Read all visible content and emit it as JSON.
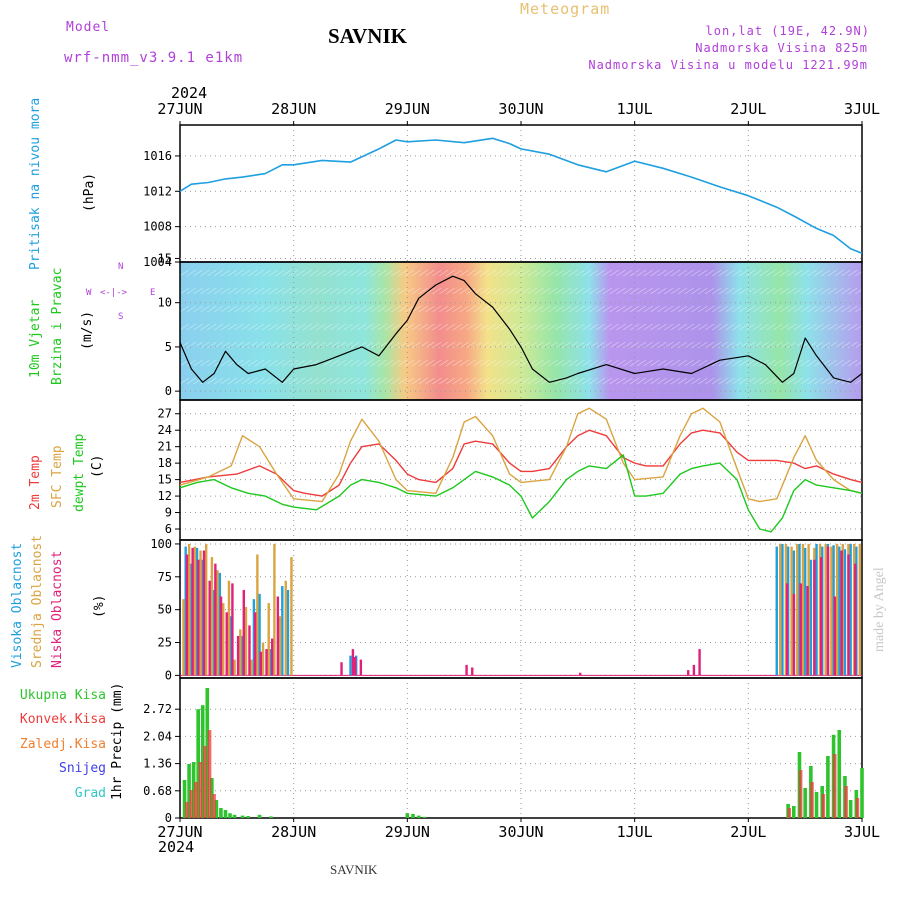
{
  "header": {
    "model_label": "Model",
    "model_name": "wrf-nmm_v3.9.1 e1km",
    "station": "SAVNIK",
    "product": "Meteogram",
    "lonlat": "lon,lat (19E, 42.9N)",
    "elevation": "Nadmorska Visina 825m",
    "model_elevation": "Nadmorska Visina u modelu 1221.99m",
    "year": "2024"
  },
  "footer": {
    "station": "SAVNIK",
    "year": "2024",
    "watermark": "made by Angel"
  },
  "colors": {
    "pressure": "#1e9fe0",
    "temp2m": "#ee3b3b",
    "sfc": "#d9a441",
    "dewpt": "#1ec81e",
    "high_cloud": "#1e9fe0",
    "mid_cloud": "#d9a441",
    "low_cloud": "#e0207a",
    "total_precip": "#2ec42e",
    "conv_precip": "#ee3b3b",
    "frz_precip": "#ee8030",
    "snow": "#4040e8",
    "graupel": "#30c8c8"
  },
  "axis_labels": {
    "pressure": [
      "Pritisak na nivou mora",
      "(hPa)"
    ],
    "wind": [
      "10m Vjetar",
      "Brzina i Pravac",
      "(m/s)"
    ],
    "wind_compass": [
      "N",
      "S",
      "W",
      "E",
      "<-|->"
    ],
    "temp": [
      "2m Temp",
      "SFC Temp",
      "dewpt Temp",
      "(C)"
    ],
    "cloud": [
      "Visoka Oblacnost",
      "Srednja Oblacnost",
      "Niska Oblacnost",
      "(%)"
    ],
    "precip": [
      "Ukupna Kisa",
      "Konvek.Kisa",
      "Zaledj.Kisa",
      "Snijeg",
      "Grad",
      "1hr Precip (mm)"
    ]
  },
  "chart_data": [
    {
      "type": "line",
      "x_ticks": [
        "27JUN",
        "28JUN",
        "29JUN",
        "30JUN",
        "1JUL",
        "2JUL",
        "3JUL"
      ],
      "ylabel": "(hPa)",
      "ylim": [
        1004,
        1019.5
      ],
      "yticks": [
        1004,
        1008,
        1012,
        1016
      ],
      "grid": true,
      "series": [
        {
          "name": "Pritisak na nivou mora",
          "x": [
            0,
            0.1,
            0.25,
            0.4,
            0.55,
            0.75,
            0.9,
            1.0,
            1.25,
            1.5,
            1.75,
            1.9,
            2.0,
            2.25,
            2.5,
            2.75,
            2.9,
            3.0,
            3.25,
            3.5,
            3.75,
            4.0,
            4.25,
            4.5,
            4.75,
            5.0,
            5.25,
            5.4,
            5.6,
            5.75,
            5.9,
            6.0
          ],
          "y": [
            1012.0,
            1012.8,
            1013.0,
            1013.4,
            1013.6,
            1014.0,
            1015.0,
            1015.0,
            1015.5,
            1015.3,
            1016.8,
            1017.8,
            1017.6,
            1017.8,
            1017.5,
            1018.0,
            1017.4,
            1016.8,
            1016.2,
            1015.0,
            1014.2,
            1015.4,
            1014.6,
            1013.6,
            1012.5,
            1011.5,
            1010.2,
            1009.2,
            1007.8,
            1007.0,
            1005.5,
            1005.0
          ]
        }
      ]
    },
    {
      "type": "line",
      "ylabel": "(m/s)",
      "ylim": [
        -1,
        14.6
      ],
      "yticks": [
        0,
        5,
        10,
        15
      ],
      "grid": true,
      "series": [
        {
          "name": "10m Vjetar",
          "x": [
            0,
            0.1,
            0.2,
            0.3,
            0.4,
            0.5,
            0.6,
            0.75,
            0.9,
            1.0,
            1.2,
            1.4,
            1.5,
            1.6,
            1.75,
            1.9,
            2.0,
            2.1,
            2.25,
            2.4,
            2.5,
            2.6,
            2.75,
            2.9,
            3.0,
            3.1,
            3.25,
            3.4,
            3.5,
            3.75,
            4.0,
            4.25,
            4.5,
            4.75,
            5.0,
            5.15,
            5.3,
            5.4,
            5.5,
            5.6,
            5.75,
            5.9,
            6.0
          ],
          "y": [
            5.5,
            2.5,
            1.0,
            2.0,
            4.5,
            3.0,
            2.0,
            2.5,
            1.0,
            2.5,
            3.0,
            4.0,
            4.5,
            5.0,
            4.0,
            6.5,
            8.0,
            10.5,
            12.0,
            13.0,
            12.5,
            11.0,
            9.5,
            7.0,
            5.0,
            2.5,
            1.0,
            1.5,
            2.0,
            3.0,
            2.0,
            2.5,
            2.0,
            3.5,
            4.0,
            3.0,
            1.0,
            2.0,
            6.0,
            4.0,
            1.5,
            1.0,
            2.0
          ]
        }
      ]
    },
    {
      "type": "line",
      "ylabel": "(C)",
      "ylim": [
        4,
        29.5
      ],
      "yticks": [
        6,
        9,
        12,
        15,
        18,
        21,
        24,
        27
      ],
      "grid": true,
      "series": [
        {
          "name": "2m Temp",
          "x": [
            0,
            0.25,
            0.5,
            0.7,
            0.85,
            1.0,
            1.1,
            1.25,
            1.4,
            1.5,
            1.6,
            1.75,
            1.9,
            2.0,
            2.1,
            2.25,
            2.4,
            2.5,
            2.6,
            2.75,
            2.9,
            3.0,
            3.1,
            3.25,
            3.4,
            3.5,
            3.6,
            3.75,
            3.9,
            4.0,
            4.1,
            4.25,
            4.4,
            4.5,
            4.6,
            4.75,
            4.9,
            5.0,
            5.1,
            5.25,
            5.4,
            5.5,
            5.6,
            5.75,
            5.9,
            6.0
          ],
          "y": [
            14.5,
            15.5,
            16.0,
            17.5,
            16.0,
            13.0,
            12.5,
            12.0,
            14.0,
            18.0,
            21.0,
            21.5,
            18.5,
            16.0,
            15.0,
            14.5,
            17.0,
            21.5,
            22.0,
            21.5,
            18.0,
            16.5,
            16.5,
            17.0,
            21.0,
            23.0,
            24.0,
            23.0,
            19.0,
            18.0,
            17.5,
            17.5,
            21.5,
            23.5,
            24.0,
            23.5,
            20.0,
            18.5,
            18.5,
            18.5,
            18.0,
            17.0,
            17.5,
            16.0,
            15.0,
            14.5
          ]
        },
        {
          "name": "SFC Temp",
          "x": [
            0,
            0.25,
            0.45,
            0.55,
            0.7,
            0.85,
            1.0,
            1.25,
            1.4,
            1.5,
            1.6,
            1.75,
            1.9,
            2.0,
            2.25,
            2.4,
            2.5,
            2.6,
            2.75,
            2.9,
            3.0,
            3.25,
            3.4,
            3.5,
            3.6,
            3.75,
            3.9,
            4.0,
            4.25,
            4.4,
            4.5,
            4.6,
            4.75,
            4.9,
            5.0,
            5.1,
            5.25,
            5.4,
            5.5,
            5.6,
            5.75,
            5.9,
            6.0
          ],
          "y": [
            14.0,
            15.5,
            17.5,
            23.0,
            21.0,
            16.0,
            11.5,
            11.0,
            16.0,
            22.0,
            26.0,
            22.0,
            15.0,
            13.0,
            12.5,
            19.0,
            25.5,
            26.5,
            23.0,
            16.0,
            14.5,
            15.0,
            21.0,
            27.0,
            28.0,
            26.0,
            18.0,
            15.0,
            15.5,
            23.0,
            27.0,
            28.0,
            25.5,
            17.0,
            11.5,
            11.0,
            11.5,
            19.0,
            23.0,
            18.5,
            15.0,
            13.0,
            12.5
          ]
        },
        {
          "name": "dewpt Temp",
          "x": [
            0,
            0.15,
            0.3,
            0.45,
            0.6,
            0.75,
            0.9,
            1.0,
            1.2,
            1.4,
            1.5,
            1.6,
            1.75,
            1.9,
            2.0,
            2.25,
            2.4,
            2.5,
            2.6,
            2.75,
            2.9,
            3.0,
            3.1,
            3.25,
            3.4,
            3.5,
            3.6,
            3.75,
            3.9,
            4.0,
            4.1,
            4.25,
            4.4,
            4.5,
            4.6,
            4.75,
            4.9,
            5.0,
            5.1,
            5.2,
            5.3,
            5.4,
            5.5,
            5.6,
            5.75,
            5.9,
            6.0
          ],
          "y": [
            13.5,
            14.5,
            15.0,
            13.5,
            12.5,
            12.0,
            10.5,
            10.0,
            9.5,
            12.0,
            14.0,
            15.0,
            14.5,
            13.5,
            12.5,
            12.0,
            13.5,
            15.0,
            16.5,
            15.5,
            14.0,
            12.0,
            8.0,
            11.0,
            15.0,
            16.5,
            17.5,
            17.0,
            19.5,
            12.0,
            12.0,
            12.5,
            16.0,
            17.0,
            17.5,
            18.0,
            15.0,
            9.5,
            6.0,
            5.5,
            8.0,
            13.0,
            15.0,
            14.0,
            13.5,
            13.0,
            12.5
          ]
        }
      ]
    },
    {
      "type": "bar",
      "ylabel": "(%)",
      "ylim": [
        -2,
        103
      ],
      "yticks": [
        0,
        25,
        50,
        75,
        100
      ],
      "grid": true,
      "series": [
        {
          "name": "Visoka Oblacnost",
          "x": [
            0.05,
            0.1,
            0.15,
            0.2,
            0.3,
            0.35,
            0.45,
            0.55,
            0.65,
            0.7,
            0.8,
            0.9,
            0.95,
            1.5,
            1.55,
            5.25,
            5.3,
            5.35,
            5.4,
            5.45,
            5.5,
            5.55,
            5.6,
            5.65,
            5.7,
            5.75,
            5.8,
            5.85,
            5.9,
            5.95
          ],
          "y": [
            98,
            85,
            97,
            88,
            65,
            78,
            45,
            30,
            58,
            62,
            20,
            68,
            65,
            15,
            15,
            98,
            100,
            98,
            95,
            100,
            97,
            88,
            100,
            98,
            100,
            99,
            98,
            96,
            100,
            98
          ]
        },
        {
          "name": "Srednja Oblacnost",
          "x": [
            0.02,
            0.07,
            0.12,
            0.17,
            0.22,
            0.27,
            0.32,
            0.37,
            0.42,
            0.47,
            0.52,
            0.57,
            0.62,
            0.67,
            0.72,
            0.77,
            0.82,
            0.87,
            0.92,
            0.97,
            5.27,
            5.32,
            5.37,
            5.42,
            5.47,
            5.52,
            5.57,
            5.62,
            5.67,
            5.72,
            5.77,
            5.82,
            5.87,
            5.92,
            5.97
          ],
          "y": [
            58,
            100,
            98,
            95,
            100,
            90,
            80,
            55,
            72,
            12,
            35,
            52,
            12,
            92,
            25,
            55,
            100,
            45,
            72,
            90,
            100,
            100,
            98,
            100,
            100,
            100,
            97,
            100,
            100,
            98,
            100,
            100,
            100,
            100,
            100
          ]
        },
        {
          "name": "Niska Oblacnost",
          "x": [
            0.04,
            0.09,
            0.14,
            0.19,
            0.24,
            0.29,
            0.34,
            0.39,
            0.44,
            0.49,
            0.54,
            0.59,
            0.64,
            0.69,
            0.74,
            0.79,
            0.84,
            1.4,
            1.5,
            1.52,
            1.57,
            2.5,
            2.55,
            3.5,
            4.45,
            4.5,
            4.55,
            5.32,
            5.38,
            5.44,
            5.5,
            5.56,
            5.62,
            5.68,
            5.74,
            5.8,
            5.86,
            5.92
          ],
          "y": [
            92,
            97,
            88,
            95,
            72,
            85,
            60,
            48,
            70,
            30,
            65,
            38,
            48,
            18,
            20,
            28,
            60,
            10,
            20,
            14,
            12,
            8,
            6,
            2,
            4,
            8,
            20,
            70,
            62,
            70,
            68,
            88,
            90,
            98,
            60,
            95,
            92,
            85
          ]
        }
      ]
    },
    {
      "type": "bar",
      "x_ticks": [
        "27JUN",
        "28JUN",
        "29JUN",
        "30JUN",
        "1JUL",
        "2JUL",
        "3JUL"
      ],
      "ylabel": "1hr Precip (mm)",
      "ylim": [
        0,
        3.5
      ],
      "yticks": [
        0,
        0.68,
        1.36,
        2.04,
        2.72
      ],
      "grid": true,
      "series": [
        {
          "name": "Ukupna Kisa",
          "x": [
            0.04,
            0.08,
            0.12,
            0.16,
            0.2,
            0.24,
            0.28,
            0.32,
            0.36,
            0.4,
            0.44,
            0.48,
            0.55,
            0.6,
            0.7,
            0.8,
            2.0,
            2.05,
            2.1,
            2.15,
            5.35,
            5.4,
            5.45,
            5.5,
            5.55,
            5.6,
            5.65,
            5.7,
            5.75,
            5.8,
            5.85,
            5.9,
            5.95,
            6.0
          ],
          "y": [
            0.95,
            1.35,
            1.4,
            2.72,
            2.82,
            3.25,
            1.0,
            0.45,
            0.25,
            0.2,
            0.12,
            0.08,
            0.06,
            0.05,
            0.08,
            0.04,
            0.12,
            0.1,
            0.06,
            0.03,
            0.35,
            0.3,
            1.65,
            0.75,
            1.3,
            0.65,
            0.8,
            1.55,
            2.08,
            2.2,
            1.05,
            0.45,
            0.7,
            1.25
          ]
        },
        {
          "name": "Konvek.Kisa",
          "x": [
            0.06,
            0.1,
            0.14,
            0.18,
            0.22,
            0.26,
            0.3,
            5.36,
            5.46,
            5.56,
            5.66,
            5.76,
            5.86,
            5.96
          ],
          "y": [
            0.4,
            0.7,
            0.9,
            1.4,
            1.8,
            2.2,
            0.6,
            0.25,
            1.2,
            0.9,
            0.6,
            1.6,
            0.8,
            0.5
          ]
        }
      ]
    }
  ]
}
